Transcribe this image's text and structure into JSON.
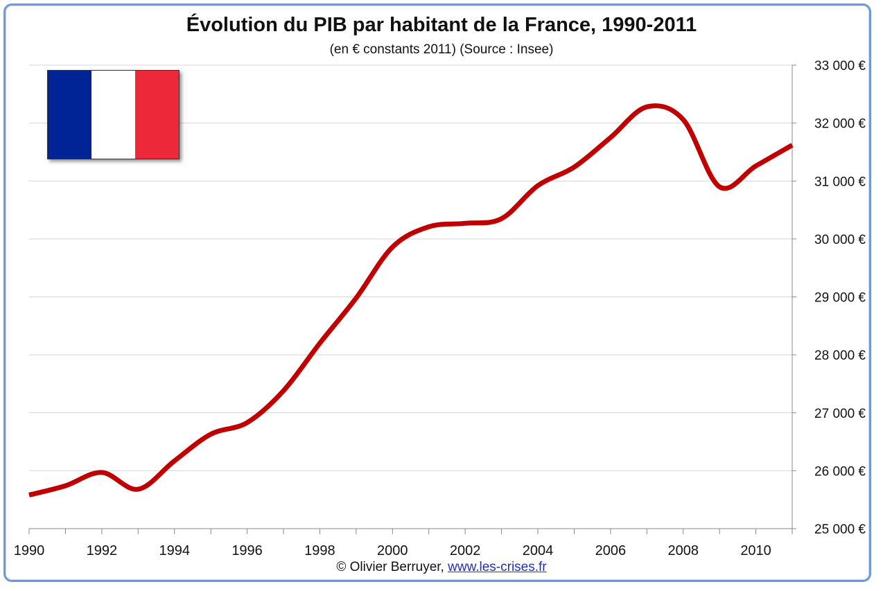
{
  "title": "Évolution du PIB par habitant de la France, 1990-2011",
  "subtitle": "(en € constants 2011) (Source : Insee)",
  "credit": {
    "author": "© Olivier Berruyer,",
    "link": "www.les-crises.fr"
  },
  "flag": {
    "colors": [
      "#002395",
      "#ffffff",
      "#ed2939"
    ]
  },
  "chart_data": {
    "type": "line",
    "x": [
      1990,
      1991,
      1992,
      1993,
      1994,
      1995,
      1996,
      1997,
      1998,
      1999,
      2000,
      2001,
      2002,
      2003,
      2004,
      2005,
      2006,
      2007,
      2008,
      2009,
      2010,
      2011
    ],
    "series": [
      {
        "color": "#c00000",
        "values": [
          25580,
          25740,
          25970,
          25680,
          26170,
          26630,
          26830,
          27380,
          28200,
          28980,
          29860,
          30210,
          30270,
          30350,
          30920,
          31240,
          31750,
          32280,
          32060,
          30900,
          31260,
          31620
        ]
      }
    ],
    "xlim": [
      1990,
      2011
    ],
    "ylim": [
      25000,
      33000
    ],
    "x_ticks": [
      "1990",
      "1992",
      "1994",
      "1996",
      "1998",
      "2000",
      "2002",
      "2004",
      "2006",
      "2008",
      "2010"
    ],
    "y_ticks": [
      "25 000 €",
      "26 000 €",
      "27 000 €",
      "28 000 €",
      "29 000 €",
      "30 000 €",
      "31 000 €",
      "32 000 €",
      "33 000 €"
    ],
    "grid": true,
    "y_axis_side": "right"
  }
}
